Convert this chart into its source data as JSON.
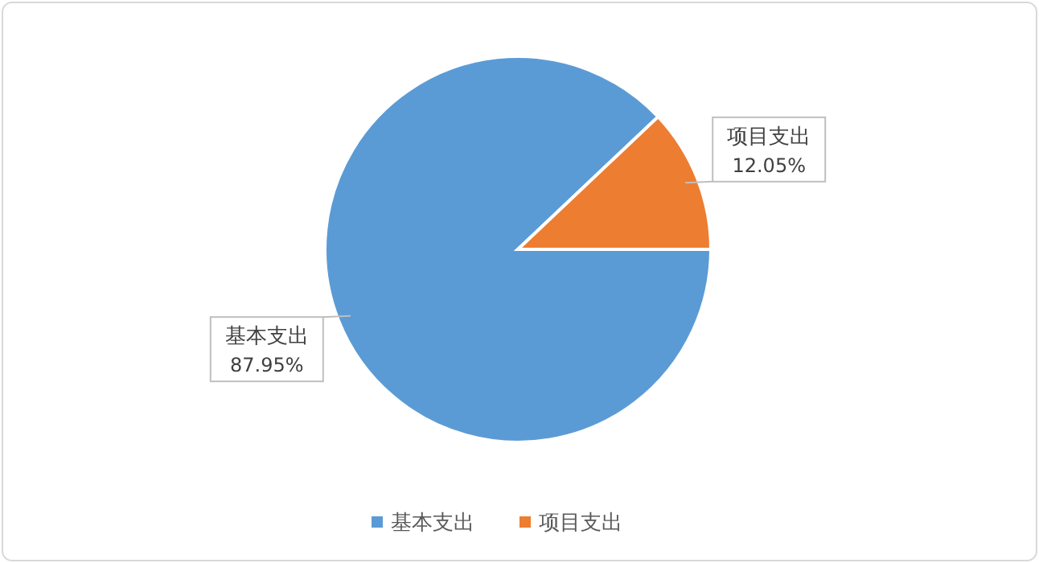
{
  "chart_data": {
    "type": "pie",
    "categories": [
      "基本支出",
      "项目支出"
    ],
    "values": [
      87.95,
      12.05
    ],
    "colors": [
      "#5b9bd5",
      "#ed7d31"
    ],
    "value_labels": [
      "87.95%",
      "12.05%"
    ],
    "legend": "bottom"
  }
}
